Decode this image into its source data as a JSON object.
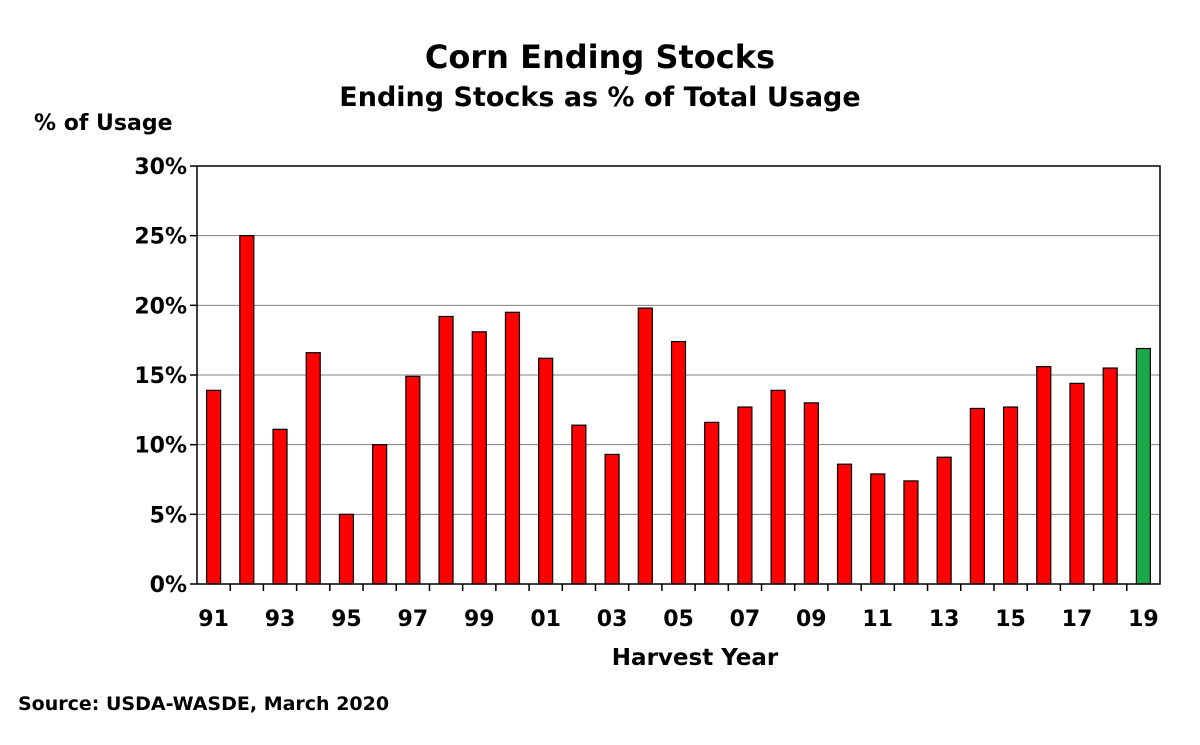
{
  "chart_data": {
    "type": "bar",
    "title": "Corn Ending Stocks",
    "subtitle": "Ending Stocks as % of Total Usage",
    "ylabel": "% of Usage",
    "xlabel": "Harvest Year",
    "source": "Source:  USDA-WASDE, March 2020",
    "ylim": [
      0,
      30
    ],
    "yticks": [
      "0%",
      "5%",
      "10%",
      "15%",
      "20%",
      "25%",
      "30%"
    ],
    "xtick_labels": [
      "91",
      "93",
      "95",
      "97",
      "99",
      "01",
      "03",
      "05",
      "07",
      "09",
      "11",
      "13",
      "15",
      "17",
      "19"
    ],
    "grid": "horizontal",
    "categories": [
      "91",
      "92",
      "93",
      "94",
      "95",
      "96",
      "97",
      "98",
      "99",
      "00",
      "01",
      "02",
      "03",
      "04",
      "05",
      "06",
      "07",
      "08",
      "09",
      "10",
      "11",
      "12",
      "13",
      "14",
      "15",
      "16",
      "17",
      "18",
      "19"
    ],
    "values": [
      13.9,
      25.0,
      11.1,
      16.6,
      5.0,
      10.0,
      14.9,
      19.2,
      18.1,
      19.5,
      16.2,
      11.4,
      9.3,
      19.8,
      17.4,
      11.6,
      12.7,
      13.9,
      13.0,
      8.6,
      7.9,
      7.4,
      9.1,
      12.6,
      12.7,
      15.6,
      14.4,
      15.5,
      16.9
    ],
    "colors": {
      "default": "#ff0000",
      "highlight": "#1aa84a",
      "outline": "#000000",
      "grid": "#808080"
    },
    "highlight_category": "19"
  }
}
